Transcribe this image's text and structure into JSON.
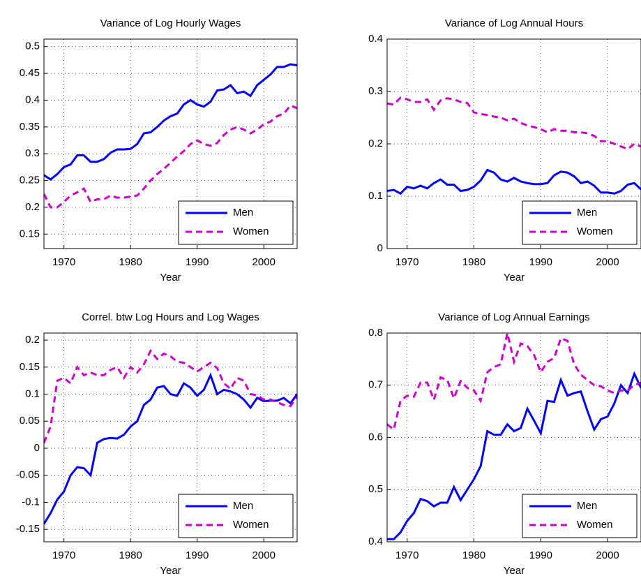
{
  "chart_data": [
    {
      "type": "line",
      "title": "Variance of Log Hourly Wages",
      "xlabel": "Year",
      "x": [
        1967,
        1968,
        1969,
        1970,
        1971,
        1972,
        1973,
        1974,
        1975,
        1976,
        1977,
        1978,
        1979,
        1980,
        1981,
        1982,
        1983,
        1984,
        1985,
        1986,
        1987,
        1988,
        1989,
        1990,
        1991,
        1992,
        1993,
        1994,
        1995,
        1996,
        1997,
        1998,
        1999,
        2000,
        2001,
        2002,
        2003,
        2004,
        2005
      ],
      "xlim": [
        1967,
        2005
      ],
      "xticks": [
        1970,
        1980,
        1990,
        2000
      ],
      "ylim": [
        0.123,
        0.514
      ],
      "yticks": [
        0.15,
        0.2,
        0.25,
        0.3,
        0.35,
        0.4,
        0.45,
        0.5
      ],
      "grid": true,
      "legend": "lower right",
      "series": [
        {
          "name": "Men",
          "color": "#0000ff",
          "dashed": false,
          "values": [
            0.26,
            0.252,
            0.262,
            0.275,
            0.28,
            0.297,
            0.297,
            0.285,
            0.285,
            0.29,
            0.302,
            0.308,
            0.308,
            0.309,
            0.318,
            0.338,
            0.34,
            0.35,
            0.362,
            0.37,
            0.375,
            0.392,
            0.4,
            0.392,
            0.388,
            0.397,
            0.418,
            0.42,
            0.428,
            0.413,
            0.416,
            0.408,
            0.428,
            0.438,
            0.448,
            0.462,
            0.462,
            0.467,
            0.465
          ]
        },
        {
          "name": "Women",
          "color": "#cc00cc",
          "dashed": true,
          "values": [
            0.225,
            0.2,
            0.2,
            0.21,
            0.222,
            0.228,
            0.235,
            0.21,
            0.215,
            0.215,
            0.222,
            0.218,
            0.218,
            0.22,
            0.222,
            0.235,
            0.25,
            0.262,
            0.272,
            0.283,
            0.295,
            0.305,
            0.318,
            0.325,
            0.318,
            0.315,
            0.32,
            0.335,
            0.345,
            0.35,
            0.345,
            0.338,
            0.345,
            0.355,
            0.36,
            0.37,
            0.375,
            0.39,
            0.385
          ]
        }
      ]
    },
    {
      "type": "line",
      "title": "Variance of Log Annual Hours",
      "xlabel": "Year",
      "x": [
        1967,
        1968,
        1969,
        1970,
        1971,
        1972,
        1973,
        1974,
        1975,
        1976,
        1977,
        1978,
        1979,
        1980,
        1981,
        1982,
        1983,
        1984,
        1985,
        1986,
        1987,
        1988,
        1989,
        1990,
        1991,
        1992,
        1993,
        1994,
        1995,
        1996,
        1997,
        1998,
        1999,
        2000,
        2001,
        2002,
        2003,
        2004,
        2005
      ],
      "xlim": [
        1967,
        2005
      ],
      "xticks": [
        1970,
        1980,
        1990,
        2000
      ],
      "ylim": [
        0,
        0.4
      ],
      "yticks": [
        0,
        0.1,
        0.2,
        0.3,
        0.4
      ],
      "grid": true,
      "legend": "lower right",
      "series": [
        {
          "name": "Men",
          "color": "#0000ff",
          "dashed": false,
          "values": [
            0.11,
            0.112,
            0.105,
            0.118,
            0.115,
            0.12,
            0.115,
            0.125,
            0.132,
            0.122,
            0.122,
            0.11,
            0.112,
            0.118,
            0.13,
            0.15,
            0.145,
            0.132,
            0.128,
            0.135,
            0.128,
            0.125,
            0.123,
            0.123,
            0.125,
            0.14,
            0.147,
            0.145,
            0.138,
            0.125,
            0.128,
            0.12,
            0.107,
            0.107,
            0.105,
            0.11,
            0.122,
            0.125,
            0.113
          ]
        },
        {
          "name": "Women",
          "color": "#cc00cc",
          "dashed": true,
          "values": [
            0.277,
            0.275,
            0.288,
            0.285,
            0.28,
            0.28,
            0.285,
            0.265,
            0.283,
            0.287,
            0.285,
            0.28,
            0.278,
            0.26,
            0.257,
            0.255,
            0.252,
            0.25,
            0.245,
            0.248,
            0.24,
            0.235,
            0.232,
            0.228,
            0.222,
            0.228,
            0.225,
            0.225,
            0.222,
            0.222,
            0.22,
            0.215,
            0.205,
            0.205,
            0.2,
            0.195,
            0.19,
            0.2,
            0.195
          ]
        }
      ]
    },
    {
      "type": "line",
      "title": "Correl. btw Log Hours and Log Wages",
      "xlabel": "Year",
      "x": [
        1967,
        1968,
        1969,
        1970,
        1971,
        1972,
        1973,
        1974,
        1975,
        1976,
        1977,
        1978,
        1979,
        1980,
        1981,
        1982,
        1983,
        1984,
        1985,
        1986,
        1987,
        1988,
        1989,
        1990,
        1991,
        1992,
        1993,
        1994,
        1995,
        1996,
        1997,
        1998,
        1999,
        2000,
        2001,
        2002,
        2003,
        2004,
        2005
      ],
      "xlim": [
        1967,
        2005
      ],
      "xticks": [
        1970,
        1980,
        1990,
        2000
      ],
      "ylim": [
        -0.173,
        0.213
      ],
      "yticks": [
        -0.15,
        -0.1,
        -0.05,
        0,
        0.05,
        0.1,
        0.15,
        0.2
      ],
      "grid": true,
      "legend": "lower right",
      "series": [
        {
          "name": "Men",
          "color": "#0000ff",
          "dashed": false,
          "values": [
            -0.14,
            -0.12,
            -0.095,
            -0.08,
            -0.05,
            -0.035,
            -0.037,
            -0.05,
            0.01,
            0.017,
            0.019,
            0.018,
            0.025,
            0.04,
            0.05,
            0.08,
            0.09,
            0.112,
            0.115,
            0.1,
            0.097,
            0.12,
            0.112,
            0.097,
            0.108,
            0.135,
            0.1,
            0.108,
            0.105,
            0.1,
            0.09,
            0.075,
            0.093,
            0.087,
            0.088,
            0.088,
            0.093,
            0.083,
            0.1
          ]
        },
        {
          "name": "Women",
          "color": "#cc00cc",
          "dashed": true,
          "values": [
            0.01,
            0.04,
            0.125,
            0.13,
            0.12,
            0.15,
            0.135,
            0.14,
            0.135,
            0.135,
            0.145,
            0.15,
            0.13,
            0.15,
            0.14,
            0.155,
            0.18,
            0.165,
            0.175,
            0.17,
            0.16,
            0.158,
            0.15,
            0.142,
            0.15,
            0.158,
            0.148,
            0.12,
            0.11,
            0.13,
            0.125,
            0.1,
            0.098,
            0.09,
            0.09,
            0.085,
            0.08,
            0.078,
            0.095
          ]
        }
      ]
    },
    {
      "type": "line",
      "title": "Variance of Log Annual Earnings",
      "xlabel": "Year",
      "x": [
        1967,
        1968,
        1969,
        1970,
        1971,
        1972,
        1973,
        1974,
        1975,
        1976,
        1977,
        1978,
        1979,
        1980,
        1981,
        1982,
        1983,
        1984,
        1985,
        1986,
        1987,
        1988,
        1989,
        1990,
        1991,
        1992,
        1993,
        1994,
        1995,
        1996,
        1997,
        1998,
        1999,
        2000,
        2001,
        2002,
        2003,
        2004,
        2005
      ],
      "xlim": [
        1967,
        2005
      ],
      "xticks": [
        1970,
        1980,
        1990,
        2000
      ],
      "ylim": [
        0.4,
        0.8
      ],
      "yticks": [
        0.4,
        0.5,
        0.6,
        0.7,
        0.8
      ],
      "grid": true,
      "legend": "lower right",
      "series": [
        {
          "name": "Men",
          "color": "#0000ff",
          "dashed": false,
          "values": [
            0.405,
            0.405,
            0.418,
            0.44,
            0.455,
            0.482,
            0.478,
            0.468,
            0.475,
            0.475,
            0.505,
            0.48,
            0.5,
            0.52,
            0.545,
            0.612,
            0.605,
            0.605,
            0.625,
            0.612,
            0.618,
            0.655,
            0.632,
            0.608,
            0.67,
            0.668,
            0.71,
            0.68,
            0.685,
            0.688,
            0.65,
            0.615,
            0.635,
            0.64,
            0.665,
            0.7,
            0.685,
            0.722,
            0.695
          ]
        },
        {
          "name": "Women",
          "color": "#cc00cc",
          "dashed": true,
          "values": [
            0.625,
            0.615,
            0.67,
            0.68,
            0.678,
            0.705,
            0.705,
            0.672,
            0.715,
            0.71,
            0.675,
            0.708,
            0.695,
            0.69,
            0.67,
            0.725,
            0.735,
            0.74,
            0.8,
            0.745,
            0.78,
            0.775,
            0.758,
            0.725,
            0.745,
            0.752,
            0.79,
            0.785,
            0.74,
            0.72,
            0.71,
            0.7,
            0.698,
            0.69,
            0.685,
            0.69,
            0.69,
            0.7,
            0.705
          ]
        }
      ]
    }
  ]
}
